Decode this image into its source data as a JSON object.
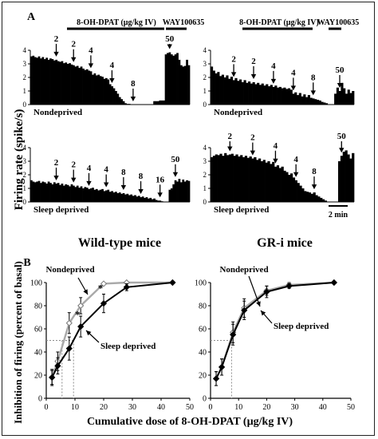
{
  "colors": {
    "ink": "#000000",
    "nondeprived_line": "#a9a9a9",
    "sleep_deprived_line": "#000000",
    "guide": "#8c8c8c"
  },
  "panel_a": {
    "letter": "A",
    "y_axis_title": "Firing rate (spike/s)",
    "bracket_label": "8-OH-DPAT (µg/kg IV)",
    "antagonist_label": "WAY100635",
    "scale_label": "2 min",
    "columns": [
      "Wild-type mice",
      "GR-i mice"
    ],
    "y_ticks": [
      "0",
      "1",
      "2",
      "3",
      "4"
    ]
  },
  "panel_b": {
    "letter": "B",
    "y_axis_title": "Inhibition of firing (percent of basal)",
    "x_axis_title": "Cumulative dose of  8-OH-DPAT (µg/kg IV)"
  },
  "chart_data": [
    {
      "type": "bar",
      "name": "Wild-type, Nondeprived",
      "row_label": "Nondeprived",
      "ylim": [
        0,
        4
      ],
      "ylabel": "Firing rate (spike/s)",
      "injections": [
        {
          "label": "2",
          "bin": 13
        },
        {
          "label": "2",
          "bin": 22
        },
        {
          "label": "4",
          "bin": 31
        },
        {
          "label": "4",
          "bin": 42
        },
        {
          "label": "8",
          "bin": 53
        },
        {
          "label": "50",
          "bin": 72
        }
      ],
      "values": [
        3.55,
        3.6,
        3.5,
        3.45,
        3.55,
        3.4,
        3.5,
        3.35,
        3.45,
        3.3,
        3.4,
        3.35,
        3.25,
        3.3,
        3.2,
        3.15,
        3.2,
        3.05,
        3.1,
        3.0,
        3.05,
        2.95,
        2.9,
        2.8,
        2.85,
        2.7,
        2.8,
        2.65,
        2.55,
        2.6,
        2.5,
        2.45,
        2.2,
        2.3,
        2.15,
        2.2,
        2.1,
        2.05,
        1.9,
        1.95,
        1.85,
        1.5,
        1.35,
        1.2,
        1.0,
        0.8,
        0.55,
        0.4,
        0.25,
        0.1,
        0.05,
        0.05,
        0,
        0,
        0,
        0,
        0,
        0,
        0,
        0,
        0,
        0,
        0,
        0,
        0.25,
        0.25,
        0.25,
        0.3,
        0.3,
        0.3,
        3.7,
        3.8,
        3.85,
        3.7,
        3.6,
        3.7,
        3.8,
        3.3,
        2.9,
        2.8,
        2.85,
        3.3,
        2.9
      ]
    },
    {
      "type": "bar",
      "name": "Wild-type, Sleep deprived",
      "row_label": "Sleep deprived",
      "ylim": [
        0,
        4
      ],
      "ylabel": "Firing rate (spike/s)",
      "injections": [
        {
          "label": "2",
          "bin": 13
        },
        {
          "label": "2",
          "bin": 22
        },
        {
          "label": "4",
          "bin": 30
        },
        {
          "label": "4",
          "bin": 39
        },
        {
          "label": "8",
          "bin": 48
        },
        {
          "label": "8",
          "bin": 57
        },
        {
          "label": "16",
          "bin": 67
        },
        {
          "label": "50",
          "bin": 75
        }
      ],
      "values": [
        1.6,
        1.5,
        1.45,
        1.5,
        1.55,
        1.4,
        1.5,
        1.45,
        1.35,
        1.5,
        1.4,
        1.3,
        1.45,
        1.35,
        1.4,
        1.25,
        1.35,
        1.2,
        1.3,
        1.25,
        1.15,
        1.3,
        1.2,
        1.1,
        1.2,
        1.05,
        1.15,
        1.0,
        1.1,
        1.05,
        0.95,
        1.0,
        1.05,
        0.9,
        0.95,
        0.85,
        0.9,
        0.95,
        0.8,
        0.85,
        0.9,
        0.75,
        0.8,
        0.7,
        0.75,
        0.65,
        0.7,
        0.6,
        0.65,
        0.55,
        0.6,
        0.5,
        0.55,
        0.45,
        0.5,
        0.4,
        0.45,
        0.35,
        0.4,
        0.3,
        0.35,
        0.25,
        0.3,
        0.2,
        0.25,
        0.15,
        0.1,
        0.1,
        0.05,
        0,
        0,
        0,
        0.9,
        1.0,
        1.3,
        1.6,
        1.5,
        1.7,
        1.45,
        1.65,
        1.5,
        1.6,
        1.55
      ]
    },
    {
      "type": "bar",
      "name": "GR-i, Nondeprived",
      "row_label": "Nondeprived",
      "ylim": [
        0,
        4
      ],
      "ylabel": "Firing rate (spike/s)",
      "injections": [
        {
          "label": "2",
          "bin": 10
        },
        {
          "label": "2",
          "bin": 19
        },
        {
          "label": "4",
          "bin": 28
        },
        {
          "label": "4",
          "bin": 37
        },
        {
          "label": "8",
          "bin": 46
        },
        {
          "label": "50",
          "bin": 58
        }
      ],
      "values": [
        2.8,
        2.5,
        2.3,
        2.4,
        2.1,
        2.2,
        2.0,
        2.15,
        1.9,
        2.05,
        1.8,
        1.95,
        1.75,
        1.85,
        1.65,
        1.8,
        1.6,
        1.7,
        1.55,
        1.65,
        1.5,
        1.6,
        1.45,
        1.55,
        1.4,
        1.5,
        1.35,
        1.45,
        1.3,
        1.4,
        1.25,
        1.3,
        1.2,
        1.25,
        1.15,
        1.2,
        1.1,
        0.8,
        0.9,
        0.7,
        0.85,
        0.6,
        0.75,
        0.55,
        0.7,
        0.5,
        0.45,
        0.4,
        0.35,
        0.3,
        0.2,
        0.15,
        0.1,
        0,
        0,
        0,
        0.8,
        1.25,
        1.0,
        1.6,
        1.2,
        0.8,
        1.1,
        0.85,
        1.0
      ]
    },
    {
      "type": "bar",
      "name": "GR-i, Sleep deprived",
      "row_label": "Sleep deprived",
      "ylim": [
        0,
        4
      ],
      "ylabel": "Firing rate (spike/s)",
      "scale_bar": "2 min",
      "injections": [
        {
          "label": "2",
          "bin": 8
        },
        {
          "label": "2",
          "bin": 18
        },
        {
          "label": "4",
          "bin": 28
        },
        {
          "label": "4",
          "bin": 37
        },
        {
          "label": "8",
          "bin": 45
        },
        {
          "label": "50",
          "bin": 57
        }
      ],
      "values": [
        3.3,
        3.4,
        3.5,
        3.45,
        3.55,
        3.4,
        3.6,
        3.45,
        3.5,
        3.55,
        3.4,
        3.5,
        3.35,
        3.45,
        3.3,
        3.4,
        3.25,
        3.35,
        3.2,
        3.3,
        3.1,
        3.2,
        3.0,
        3.1,
        2.9,
        3.0,
        2.8,
        2.95,
        2.6,
        2.7,
        2.5,
        2.6,
        2.3,
        2.2,
        2.0,
        2.1,
        1.8,
        1.6,
        1.4,
        1.2,
        1.0,
        0.8,
        0.75,
        0.7,
        0.6,
        0.7,
        0.5,
        0.4,
        0.3,
        0.2,
        0.1,
        0,
        0,
        0,
        0,
        0,
        3.0,
        3.4,
        3.7,
        3.8,
        3.5,
        3.2,
        3.6
      ]
    },
    {
      "type": "line",
      "name": "Wild-type mice",
      "xlim": [
        0,
        50
      ],
      "ylim": [
        0,
        100
      ],
      "xticks": [
        0,
        10,
        20,
        30,
        40,
        50
      ],
      "yticks": [
        0,
        20,
        40,
        60,
        80,
        100
      ],
      "xlabel": "Cumulative dose of  8-OH-DPAT (µg/kg IV)",
      "ylabel": "Inhibition of firing (percent of basal)",
      "series": [
        {
          "name": "Nondeprived",
          "marker": "open-diamond",
          "x": [
            2,
            4,
            8,
            12,
            20,
            28,
            44
          ],
          "y": [
            18,
            32,
            65,
            80,
            99,
            100,
            100
          ],
          "err": [
            7,
            8,
            9,
            7,
            1,
            0,
            0
          ]
        },
        {
          "name": "Sleep deprived",
          "marker": "filled-diamond",
          "x": [
            2,
            4,
            8,
            12,
            20,
            28,
            44
          ],
          "y": [
            18,
            28,
            43,
            62,
            82,
            96,
            100
          ],
          "err": [
            6,
            7,
            10,
            9,
            8,
            3,
            0
          ]
        }
      ],
      "ec50_guides": [
        {
          "y": 50,
          "x": 5.5
        },
        {
          "y": 50,
          "x": 9.5
        }
      ],
      "annotations": [
        {
          "text": "*",
          "x": 12,
          "y": 72
        },
        {
          "text": "*",
          "x": 20,
          "y": 95
        }
      ]
    },
    {
      "type": "line",
      "name": "GR-i mice",
      "xlim": [
        0,
        50
      ],
      "ylim": [
        0,
        100
      ],
      "xticks": [
        0,
        10,
        20,
        30,
        40,
        50
      ],
      "yticks": [
        0,
        20,
        40,
        60,
        80,
        100
      ],
      "xlabel": "Cumulative dose of  8-OH-DPAT (µg/kg IV)",
      "series": [
        {
          "name": "Nondeprived",
          "marker": "open-diamond",
          "x": [
            2,
            4,
            8,
            12,
            20,
            28,
            44
          ],
          "y": [
            17,
            27,
            57,
            78,
            93,
            98,
            100
          ],
          "err": [
            6,
            7,
            9,
            8,
            4,
            2,
            0
          ]
        },
        {
          "name": "Sleep deprived",
          "marker": "filled-diamond",
          "x": [
            2,
            4,
            8,
            12,
            20,
            28,
            44
          ],
          "y": [
            17,
            27,
            55,
            76,
            92,
            97,
            100
          ],
          "err": [
            6,
            7,
            9,
            8,
            5,
            2,
            0
          ]
        }
      ],
      "ec50_guides": [
        {
          "y": 50,
          "x": 7.5
        }
      ]
    }
  ]
}
